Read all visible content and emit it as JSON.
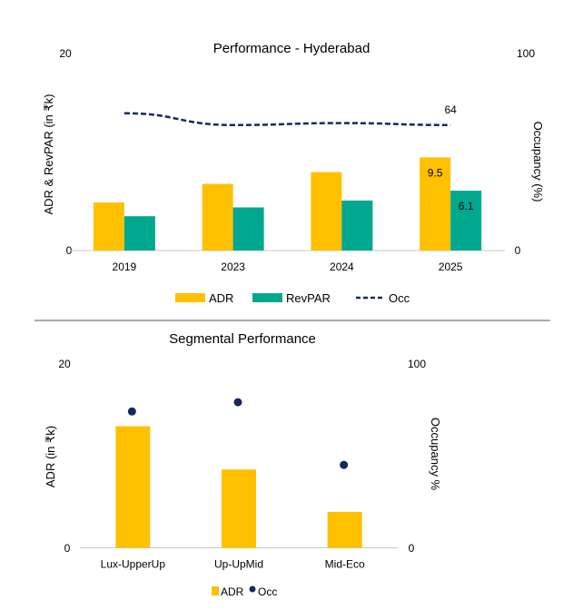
{
  "chart_data": [
    {
      "type": "bar",
      "title": "Performance - Hyderabad",
      "categories": [
        "2019",
        "2023",
        "2024",
        "2025"
      ],
      "ylabel": "ADR & RevPAR (in ₹k)",
      "y2label": "Occupancy (%)",
      "ylim": [
        0,
        20
      ],
      "y2lim": [
        0,
        100
      ],
      "yticks": [
        "0",
        "20"
      ],
      "y2ticks": [
        "0",
        "100"
      ],
      "grid": false,
      "legend_position": "bottom",
      "series": [
        {
          "name": "ADR",
          "kind": "bar",
          "axis": "left",
          "color": "#FFC000",
          "values": [
            4.9,
            6.8,
            8.0,
            9.5
          ],
          "labels": [
            null,
            null,
            null,
            "9.5"
          ]
        },
        {
          "name": "RevPAR",
          "kind": "bar",
          "axis": "left",
          "color": "#00A88F",
          "values": [
            3.5,
            4.4,
            5.1,
            6.1
          ],
          "labels": [
            null,
            null,
            null,
            "6.1"
          ]
        },
        {
          "name": "Occ",
          "kind": "line",
          "style": "dashed",
          "axis": "right",
          "color": "#142A5C",
          "values": [
            70,
            64,
            65,
            64
          ],
          "labels": [
            null,
            null,
            null,
            "64"
          ]
        }
      ],
      "legend": [
        "ADR",
        "RevPAR",
        "Occ"
      ]
    },
    {
      "type": "bar",
      "title": "Segmental Performance",
      "categories": [
        "Lux-UpperUp",
        "Up-UpMid",
        "Mid-Eco"
      ],
      "ylabel": "ADR (in ₹k)",
      "y2label": "Occupancy %",
      "ylim": [
        0,
        20
      ],
      "y2lim": [
        0,
        100
      ],
      "yticks": [
        "0",
        "20"
      ],
      "y2ticks": [
        "0",
        "100"
      ],
      "grid": false,
      "legend_position": "bottom",
      "series": [
        {
          "name": "ADR",
          "kind": "bar",
          "axis": "left",
          "color": "#FFC000",
          "values": [
            13.2,
            8.5,
            3.9
          ]
        },
        {
          "name": "Occ",
          "kind": "scatter",
          "axis": "right",
          "color": "#142A5C",
          "values": [
            74,
            79,
            45
          ]
        }
      ],
      "legend": [
        "ADR",
        "Occ"
      ]
    }
  ]
}
